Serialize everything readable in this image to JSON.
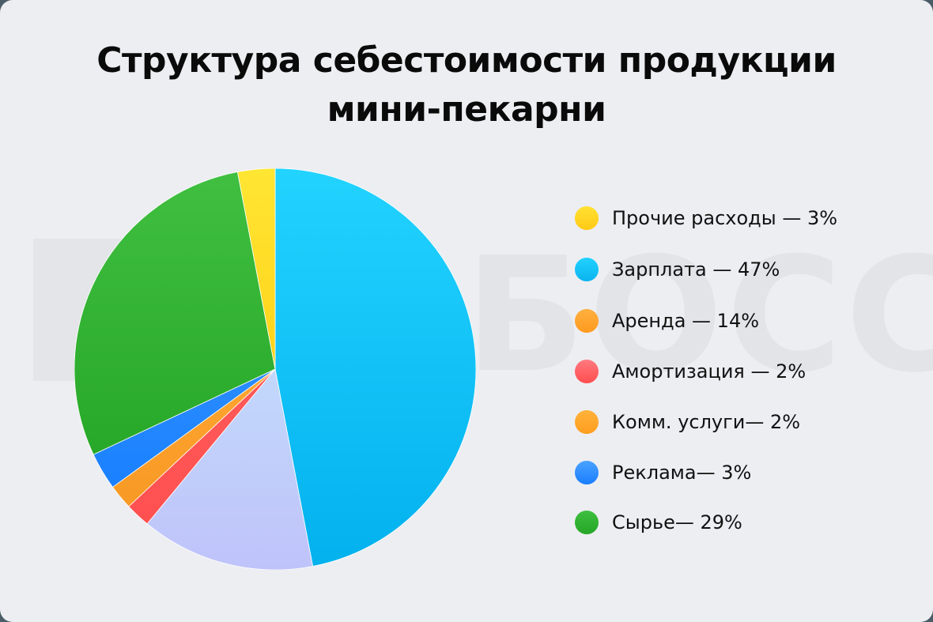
{
  "title": {
    "line1": "Структура себестоимости продукции",
    "line2": "мини-пекарни"
  },
  "watermark": "БОСС",
  "colors": {
    "card_bg": "#edeef2",
    "outer_bg": "#4b5d66"
  },
  "legend": {
    "items": [
      {
        "label": "Прочие расходы — 3%",
        "dot_top": "#ffe233",
        "dot_bottom": "#ffc915"
      },
      {
        "label": "Зарплата — 47%",
        "dot_top": "#22d2ff",
        "dot_bottom": "#0ab4ef"
      },
      {
        "label": "Аренда — 14%",
        "dot_top": "#ffb040",
        "dot_bottom": "#ff9a1f"
      },
      {
        "label": "Амортизация — 2%",
        "dot_top": "#ff7a80",
        "dot_bottom": "#ff4d4f"
      },
      {
        "label": "Комм. услуги— 2%",
        "dot_top": "#ffb33a",
        "dot_bottom": "#ff9d1f"
      },
      {
        "label": "Реклама— 3%",
        "dot_top": "#4aa3ff",
        "dot_bottom": "#1a7dff"
      },
      {
        "label": "Сырье— 29%",
        "dot_top": "#3fbf3f",
        "dot_bottom": "#26a626"
      }
    ]
  },
  "chart_data": {
    "type": "pie",
    "title": "Структура себестоимости продукции мини-пекарни",
    "start_angle_deg": 0,
    "direction": "clockwise",
    "slices": [
      {
        "label": "Зарплата",
        "value": 47,
        "color_top": "#22d3ff",
        "color_bottom": "#03b1ee"
      },
      {
        "label": "Аренда",
        "value": 14,
        "color_top": "#c2d8fb",
        "color_bottom": "#bfc3fa"
      },
      {
        "label": "Амортизация",
        "value": 2,
        "color_top": "#ff5a5a",
        "color_bottom": "#ff5050"
      },
      {
        "label": "Комм. услуги",
        "value": 2,
        "color_top": "#ffa530",
        "color_bottom": "#f79a25"
      },
      {
        "label": "Реклама",
        "value": 3,
        "color_top": "#2a8cff",
        "color_bottom": "#1a80ff"
      },
      {
        "label": "Сырье",
        "value": 29,
        "color_top": "#40bf40",
        "color_bottom": "#28a828"
      },
      {
        "label": "Прочие расходы",
        "value": 3,
        "color_top": "#ffe633",
        "color_bottom": "#ffd21a"
      }
    ],
    "legend_position": "right",
    "legend": [
      "Прочие расходы — 3%",
      "Зарплата — 47%",
      "Аренда — 14%",
      "Амортизация — 2%",
      "Комм. услуги— 2%",
      "Реклама— 3%",
      "Сырье— 29%"
    ]
  }
}
